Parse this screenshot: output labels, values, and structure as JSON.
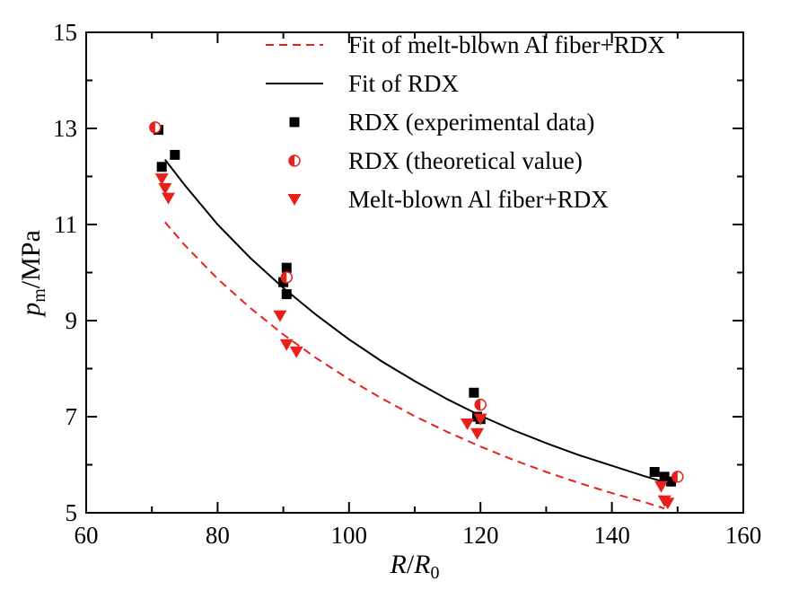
{
  "chart_data": {
    "type": "scatter",
    "xlabel": {
      "main": "R",
      "sep": "/",
      "main2": "R",
      "sub": "0"
    },
    "ylabel": {
      "main": "p",
      "sub": "m",
      "unit": "/MPa"
    },
    "xlim": [
      60,
      160
    ],
    "ylim": [
      5,
      15
    ],
    "xticks": [
      "60",
      "80",
      "100",
      "120",
      "140",
      "160"
    ],
    "yticks": [
      "5",
      "7",
      "9",
      "11",
      "13",
      "15"
    ],
    "legend_position": "top-right",
    "colors": {
      "red": "#e8201c",
      "black": "#000000"
    },
    "series": [
      {
        "name": "Fit of melt-blown Al fiber+RDX",
        "kind": "dashed-line",
        "color": "#e8201c",
        "x": [
          72,
          75,
          80,
          85,
          90,
          95,
          100,
          105,
          110,
          115,
          120,
          125,
          130,
          135,
          140,
          145,
          148
        ],
        "y": [
          11.05,
          10.57,
          9.87,
          9.26,
          8.71,
          8.22,
          7.78,
          7.38,
          7.01,
          6.68,
          6.38,
          6.1,
          5.85,
          5.62,
          5.41,
          5.22,
          5.09
        ]
      },
      {
        "name": "Fit of RDX",
        "kind": "solid-line",
        "color": "#000000",
        "x": [
          72,
          75,
          80,
          85,
          90,
          95,
          100,
          105,
          110,
          115,
          120,
          125,
          130,
          135,
          140,
          145,
          149
        ],
        "y": [
          12.35,
          11.82,
          11.0,
          10.3,
          9.68,
          9.12,
          8.61,
          8.15,
          7.74,
          7.36,
          7.02,
          6.72,
          6.45,
          6.2,
          5.98,
          5.76,
          5.6
        ]
      },
      {
        "name": "RDX (experimental data)",
        "kind": "square",
        "color": "#000000",
        "x": [
          71,
          71.5,
          73.5,
          90,
          90.5,
          90.5,
          119,
          119.5,
          120,
          146.5,
          148,
          149
        ],
        "y": [
          12.97,
          12.2,
          12.45,
          9.8,
          10.1,
          9.55,
          7.5,
          7.0,
          6.95,
          5.85,
          5.75,
          5.65
        ]
      },
      {
        "name": "RDX (theoretical value)",
        "kind": "half-circle",
        "color": "#e8201c",
        "x": [
          70.5,
          90.5,
          120,
          150
        ],
        "y": [
          13.02,
          9.9,
          7.25,
          5.75
        ]
      },
      {
        "name": "Melt-blown Al fiber+RDX",
        "kind": "triangle-down",
        "color": "#e8201c",
        "x": [
          71.5,
          72,
          72.5,
          89.5,
          90.5,
          92,
          118,
          119.5,
          120,
          147.5,
          148,
          148.5
        ],
        "y": [
          11.95,
          11.75,
          11.55,
          9.1,
          8.5,
          8.35,
          6.85,
          6.65,
          6.95,
          5.55,
          5.25,
          5.2
        ]
      }
    ]
  }
}
